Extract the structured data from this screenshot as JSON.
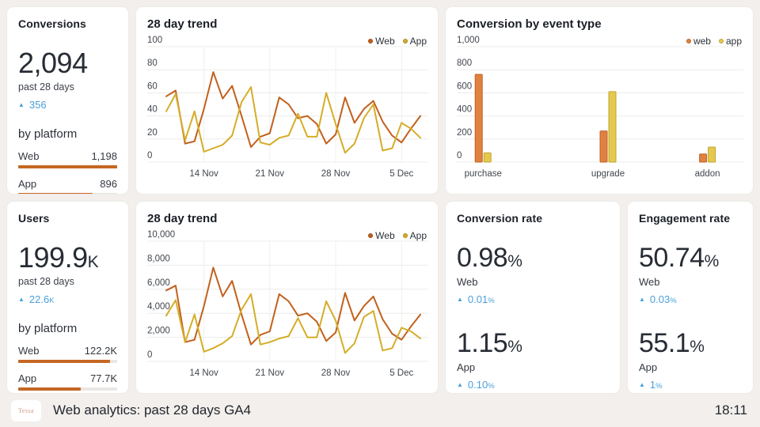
{
  "icons": {
    "up_arrow": "▲"
  },
  "colors": {
    "background": "#f2efec",
    "card": "#ffffff",
    "web_line": "#c2601c",
    "app_line": "#d4ad28",
    "web_bar": "#e08140",
    "app_bar": "#e5c94f",
    "platform_bar": "#c56723",
    "delta_blue": "#4aa0da"
  },
  "cards": {
    "conversions": {
      "title": "Conversions",
      "value": "2,094",
      "suffix": "",
      "period": "past 28 days",
      "delta": "356",
      "delta_suffix": "",
      "section": "by platform",
      "platforms": [
        {
          "label": "Web",
          "value": "1,198",
          "bar_pct": 100
        },
        {
          "label": "App",
          "value": "896",
          "bar_pct": 75
        }
      ]
    },
    "users": {
      "title": "Users",
      "value": "199.9",
      "suffix": "K",
      "period": "past 28 days",
      "delta": "22.6",
      "delta_suffix": "K",
      "section": "by platform",
      "platforms": [
        {
          "label": "Web",
          "value": "122.2K",
          "bar_pct": 93
        },
        {
          "label": "App",
          "value": "77.7K",
          "bar_pct": 63
        }
      ]
    },
    "conversion_rate": {
      "title": "Conversion rate",
      "metrics": [
        {
          "value": "0.98",
          "suffix": "%",
          "label": "Web",
          "delta": "0.01",
          "delta_suffix": "%"
        },
        {
          "value": "1.15",
          "suffix": "%",
          "label": "App",
          "delta": "0.10",
          "delta_suffix": "%"
        }
      ]
    },
    "engagement_rate": {
      "title": "Engagement rate",
      "metrics": [
        {
          "value": "50.74",
          "suffix": "%",
          "label": "Web",
          "delta": "0.03",
          "delta_suffix": "%"
        },
        {
          "value": "55.1",
          "suffix": "%",
          "label": "App",
          "delta": "1",
          "delta_suffix": "%"
        }
      ]
    }
  },
  "chart_data": [
    {
      "id": "trend-conversions",
      "type": "line",
      "title": "28 day trend",
      "ylim": [
        0,
        100
      ],
      "y_ticks": [
        0,
        20,
        40,
        60,
        80,
        100
      ],
      "y_tick_labels": [
        "0",
        "20",
        "40",
        "60",
        "80",
        "100"
      ],
      "x_tick_indices": [
        4,
        11,
        18,
        25
      ],
      "x_tick_labels": [
        "14 Nov",
        "21 Nov",
        "28 Nov",
        "5 Dec"
      ],
      "legend_position": "top-right",
      "grid": true,
      "series": [
        {
          "name": "Web",
          "color": "#c2601c",
          "stroke": "#9c4b12",
          "values": [
            57,
            62,
            16,
            18,
            46,
            78,
            55,
            66,
            40,
            13,
            22,
            25,
            56,
            50,
            38,
            40,
            33,
            16,
            24,
            56,
            34,
            46,
            53,
            35,
            23,
            17,
            29,
            40
          ]
        },
        {
          "name": "App",
          "color": "#d4ad28",
          "stroke": "#ab8a18",
          "values": [
            44,
            59,
            19,
            44,
            9,
            12,
            15,
            23,
            52,
            65,
            17,
            15,
            21,
            23,
            42,
            22,
            22,
            60,
            33,
            8,
            16,
            38,
            50,
            10,
            12,
            34,
            29,
            21
          ]
        }
      ]
    },
    {
      "id": "conversion-by-event",
      "type": "bar",
      "title": "Conversion by event type",
      "ylim": [
        0,
        1000
      ],
      "y_ticks": [
        0,
        200,
        400,
        600,
        800,
        1000
      ],
      "y_tick_labels": [
        "0",
        "200",
        "400",
        "600",
        "800",
        "1,000"
      ],
      "categories": [
        "purchase",
        "upgrade",
        "addon"
      ],
      "group_fractions": [
        0.01,
        0.5,
        0.89
      ],
      "legend_position": "top-right",
      "grid": true,
      "series": [
        {
          "name": "web",
          "color": "#e08140",
          "stroke": "#bd6426",
          "values": [
            760,
            270,
            70
          ]
        },
        {
          "name": "app",
          "color": "#e5c94f",
          "stroke": "#c0a62e",
          "values": [
            80,
            610,
            130
          ]
        }
      ]
    },
    {
      "id": "trend-users",
      "type": "line",
      "title": "28 day trend",
      "ylim": [
        0,
        10000
      ],
      "y_ticks": [
        0,
        2000,
        4000,
        6000,
        8000,
        10000
      ],
      "y_tick_labels": [
        "0",
        "2,000",
        "4,000",
        "6,000",
        "8,000",
        "10,000"
      ],
      "x_tick_indices": [
        4,
        11,
        18,
        25
      ],
      "x_tick_labels": [
        "14 Nov",
        "21 Nov",
        "28 Nov",
        "5 Dec"
      ],
      "legend_position": "top-right",
      "grid": true,
      "series": [
        {
          "name": "Web",
          "color": "#c2601c",
          "stroke": "#9c4b12",
          "values": [
            5900,
            6300,
            1600,
            1800,
            4600,
            7800,
            5400,
            6700,
            3900,
            1400,
            2200,
            2500,
            5600,
            5000,
            3800,
            4000,
            3300,
            1700,
            2400,
            5700,
            3400,
            4600,
            5400,
            3500,
            2300,
            1800,
            2900,
            3900
          ]
        },
        {
          "name": "App",
          "color": "#d4ad28",
          "stroke": "#ab8a18",
          "values": [
            3800,
            5100,
            1600,
            3900,
            800,
            1100,
            1500,
            2100,
            4300,
            5600,
            1400,
            1600,
            1900,
            2100,
            3600,
            2000,
            2000,
            5000,
            3400,
            700,
            1500,
            3700,
            4200,
            900,
            1100,
            2800,
            2500,
            1900
          ]
        }
      ]
    }
  ],
  "footer": {
    "logo": "Tessa",
    "title": "Web analytics: past 28 days GA4",
    "time": "18:11"
  }
}
